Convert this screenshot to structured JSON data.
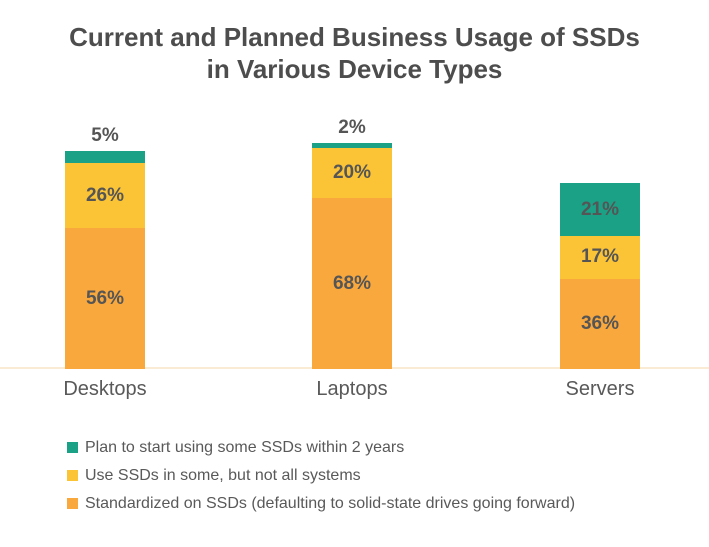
{
  "title": "Current and Planned Business Usage of SSDs in Various Device Types",
  "chart_data": {
    "type": "bar",
    "subtype": "stacked",
    "title": "Current and Planned Business Usage of SSDs in Various Device Types",
    "categories": [
      "Desktops",
      "Laptops",
      "Servers"
    ],
    "series": [
      {
        "name": "Plan to start using some SSDs within 2 years",
        "color": "#1AA186",
        "values": [
          5,
          2,
          21
        ]
      },
      {
        "name": "Use SSDs in some, but not all systems",
        "color": "#FBC437",
        "values": [
          26,
          20,
          17
        ]
      },
      {
        "name": "Standardized on SSDs (defaulting to solid-state drives going forward)",
        "color": "#F9A83D",
        "values": [
          56,
          68,
          36
        ]
      }
    ],
    "value_suffix": "%",
    "xlabel": "",
    "ylabel": "",
    "ylim": [
      0,
      100
    ],
    "grid": false,
    "legend_position": "bottom-left",
    "stack_order_bottom_to_top": [
      2,
      1,
      0
    ]
  },
  "colors": {
    "background": "#FFFFFF",
    "title_text": "#4D4D4D",
    "value_label_text": "#555555",
    "category_text": "#595959",
    "legend_text": "#595959",
    "baseline": "#FAEBD5"
  }
}
